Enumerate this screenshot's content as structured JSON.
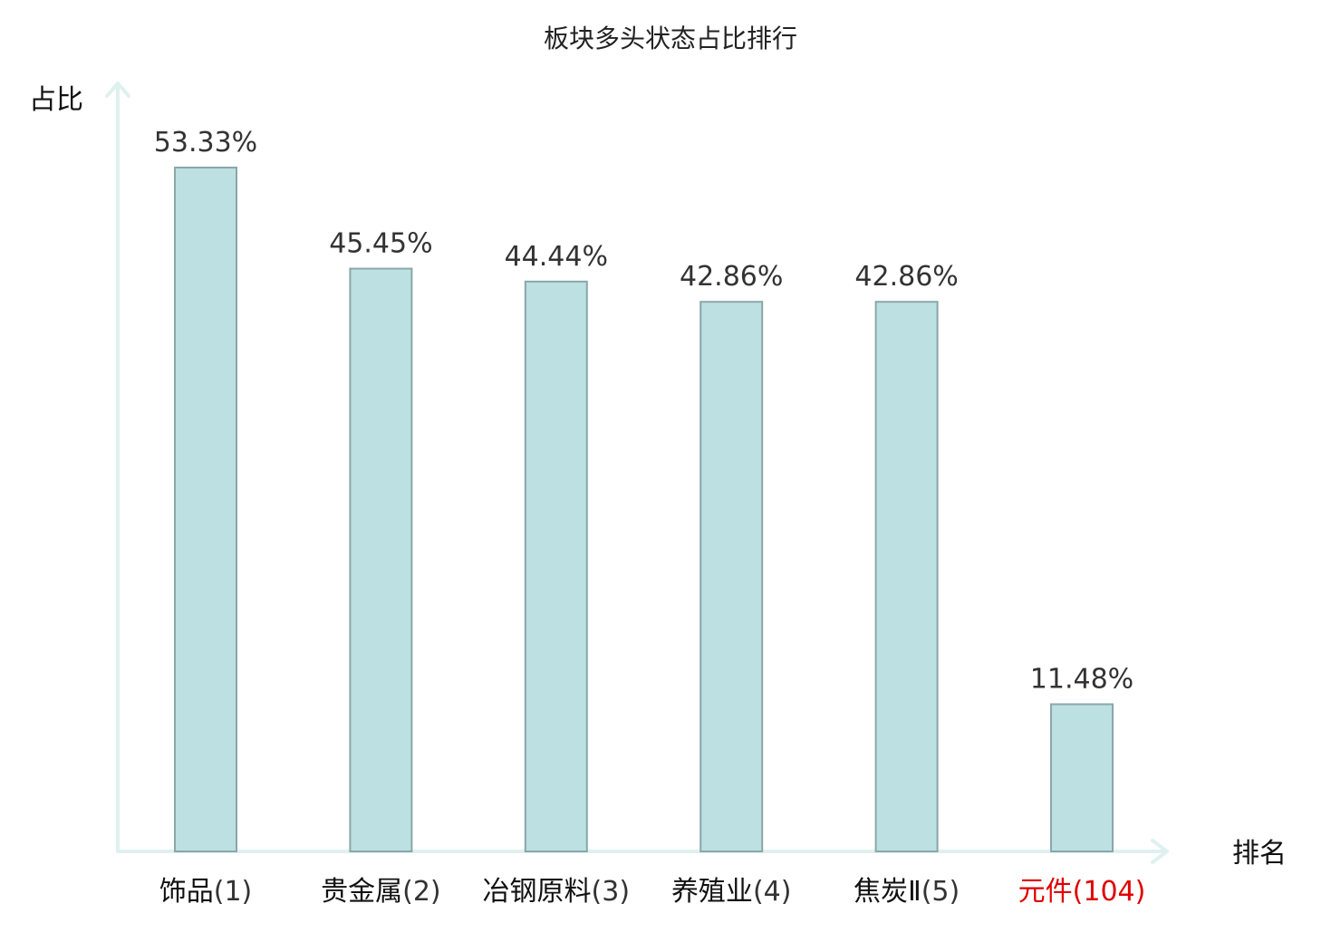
{
  "chart_data": {
    "type": "bar",
    "title": "板块多头状态占比排行",
    "ylabel": "占比",
    "xlabel": "排名",
    "ylim": [
      0,
      60
    ],
    "grid": false,
    "categories": [
      {
        "name": "饰品",
        "rank": "(1)",
        "highlight": false
      },
      {
        "name": "贵金属",
        "rank": "(2)",
        "highlight": false
      },
      {
        "name": "冶钢原料",
        "rank": "(3)",
        "highlight": false
      },
      {
        "name": "养殖业",
        "rank": "(4)",
        "highlight": false
      },
      {
        "name": "焦炭Ⅱ",
        "rank": "(5)",
        "highlight": false
      },
      {
        "name": "元件",
        "rank": "(104)",
        "highlight": true
      }
    ],
    "values": [
      53.33,
      45.45,
      44.44,
      42.86,
      42.86,
      11.48
    ],
    "value_labels": [
      "53.33%",
      "45.45%",
      "44.44%",
      "42.86%",
      "42.86%",
      "11.48%"
    ]
  },
  "colors": {
    "bar_fill": "#bde0e3",
    "bar_stroke": "#8aa7a9",
    "axis": "#dff1ef",
    "highlight": "#e00000",
    "label_normal_name": "#111111",
    "label_normal_rank": "#333333"
  }
}
